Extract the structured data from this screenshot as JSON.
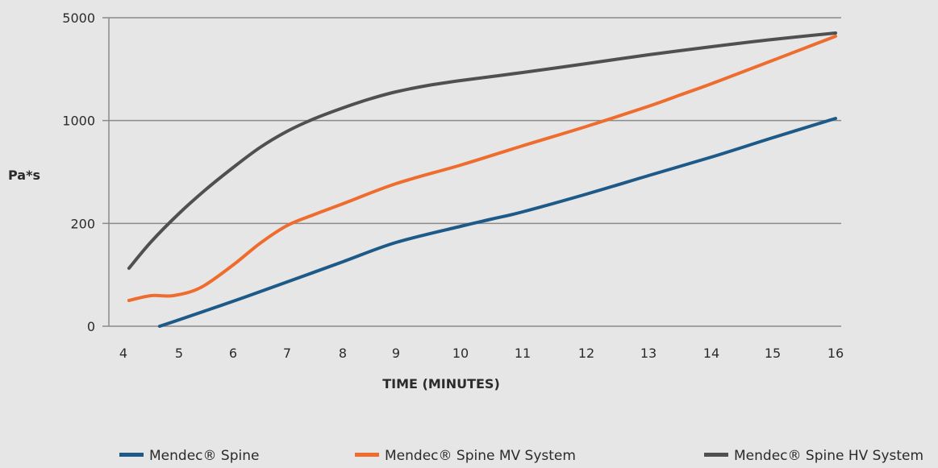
{
  "chart_data": {
    "type": "line",
    "title": "",
    "xlabel": "TIME (MINUTES)",
    "ylabel": "Pa*s",
    "x_ticks": [
      4,
      5,
      6,
      7,
      8,
      9,
      10,
      11,
      12,
      13,
      14,
      15,
      16
    ],
    "y_ticks": [
      "0",
      "200",
      "1000",
      "5000"
    ],
    "grid": true,
    "legend_position": "bottom",
    "series": [
      {
        "name": "Mendec® Spine",
        "color": "#1d5a87",
        "points": [
          [
            4.65,
            0
          ],
          [
            5,
            8
          ],
          [
            6,
            31
          ],
          [
            7,
            55
          ],
          [
            8,
            80
          ],
          [
            9,
            104
          ],
          [
            10,
            124
          ],
          [
            10.5,
            133
          ],
          [
            11,
            142
          ],
          [
            12,
            164
          ],
          [
            13,
            187
          ],
          [
            14,
            210
          ],
          [
            15,
            234
          ],
          [
            16,
            258
          ]
        ]
      },
      {
        "name": "Mendec® Spine MV System",
        "color": "#ef6c2f",
        "points": [
          [
            4.1,
            32
          ],
          [
            4.5,
            38
          ],
          [
            4.9,
            38
          ],
          [
            5.4,
            48
          ],
          [
            6,
            76
          ],
          [
            6.5,
            103
          ],
          [
            7,
            125
          ],
          [
            7.5,
            139
          ],
          [
            8,
            152
          ],
          [
            9,
            177
          ],
          [
            10,
            200
          ],
          [
            11,
            224
          ],
          [
            12,
            248
          ],
          [
            13,
            273
          ],
          [
            13.5,
            287
          ],
          [
            14,
            301
          ],
          [
            15,
            330
          ],
          [
            16,
            360
          ]
        ]
      },
      {
        "name": "Mendec® Spine HV System",
        "color": "#505050",
        "points": [
          [
            4.1,
            72
          ],
          [
            4.5,
            105
          ],
          [
            5,
            140
          ],
          [
            5.5,
            170
          ],
          [
            6,
            197
          ],
          [
            6.5,
            222
          ],
          [
            7,
            242
          ],
          [
            7.5,
            258
          ],
          [
            8,
            271
          ],
          [
            8.5,
            282
          ],
          [
            9,
            291
          ],
          [
            9.5,
            299
          ],
          [
            10,
            305
          ],
          [
            11,
            315
          ],
          [
            12,
            326
          ],
          [
            13,
            337
          ],
          [
            14,
            347
          ],
          [
            15,
            356
          ],
          [
            16,
            364
          ]
        ]
      }
    ]
  }
}
